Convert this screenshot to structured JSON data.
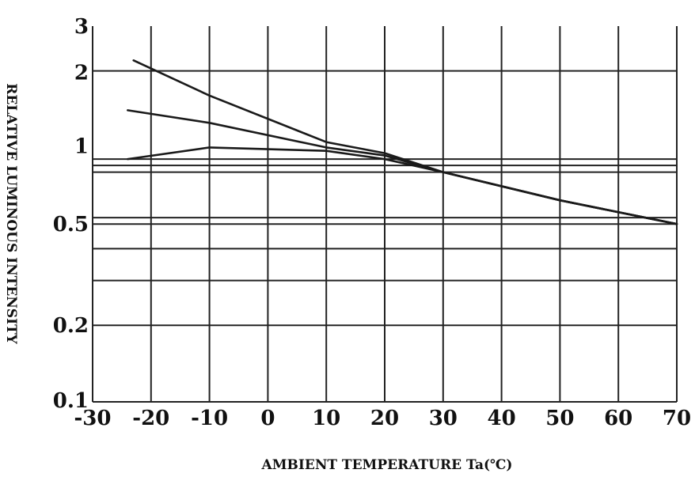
{
  "chart_data": {
    "type": "line",
    "title": "",
    "xlabel": "AMBIENT TEMPERATURE Ta(℃)",
    "ylabel": "RELATIVE LUMINOUS INTENSITY",
    "x_ticks": [
      "-30",
      "-20",
      "-10",
      "0",
      "10",
      "20",
      "30",
      "40",
      "50",
      "60",
      "70"
    ],
    "y_ticks": [
      {
        "value": 0.1,
        "label": "0.1"
      },
      {
        "value": 0.2,
        "label": "0.2"
      },
      {
        "value": 0.5,
        "label": "0.5"
      },
      {
        "value": 1,
        "label": "1"
      },
      {
        "value": 2,
        "label": "2"
      },
      {
        "value": 3,
        "label": "3"
      }
    ],
    "xlim": [
      -30,
      70
    ],
    "ylim": [
      0.1,
      3
    ],
    "y_scale": "log",
    "grid": true,
    "x_gridlines": [
      -30,
      -20,
      -10,
      0,
      10,
      20,
      30,
      40,
      50,
      60,
      70
    ],
    "y_gridlines": [
      0.1,
      0.2,
      0.3,
      0.4,
      0.5,
      0.53,
      0.8,
      0.85,
      0.9,
      2
    ],
    "series": [
      {
        "x": [
          -23,
          -10,
          10,
          20,
          30,
          50,
          70
        ],
        "y": [
          2.2,
          1.6,
          1.05,
          0.95,
          0.8,
          0.62,
          0.5
        ]
      },
      {
        "x": [
          -24,
          -10,
          10,
          20,
          30,
          50,
          70
        ],
        "y": [
          1.4,
          1.25,
          1.0,
          0.93,
          0.8,
          0.62,
          0.5
        ]
      },
      {
        "x": [
          -24,
          -10,
          10,
          20,
          30,
          50,
          70
        ],
        "y": [
          0.9,
          1.0,
          0.97,
          0.9,
          0.8,
          0.62,
          0.5
        ]
      }
    ]
  }
}
